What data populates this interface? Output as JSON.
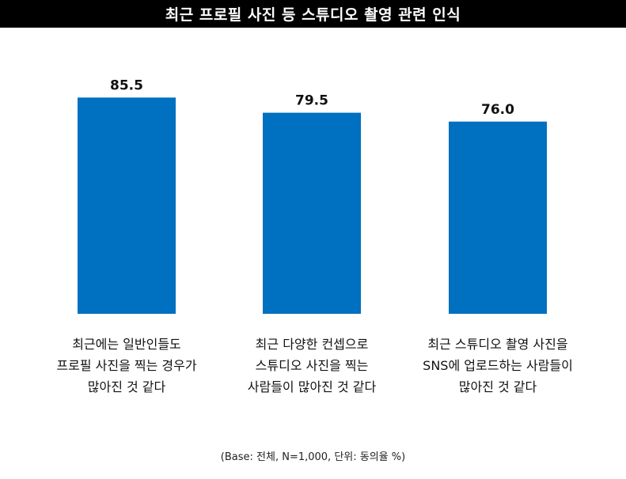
{
  "title": "최근 프로필 사진 등 스튜디오 촬영 관련 인식",
  "footnote": "(Base: 전체, N=1,000, 단위: 동의율 %)",
  "colors": {
    "bar": "#0070c0",
    "title_bg": "#000000",
    "title_text": "#ffffff"
  },
  "chart_data": {
    "type": "bar",
    "title": "최근 프로필 사진 등 스튜디오 촬영 관련 인식",
    "categories": [
      [
        "최근에는 일반인들도",
        "프로필 사진을 찍는 경우가",
        "많아진 것 같다"
      ],
      [
        "최근 다양한 컨셉으로",
        "스튜디오 사진을 찍는",
        "사람들이 많아진 것 같다"
      ],
      [
        "최근 스튜디오 촬영 사진을",
        "SNS에 업로드하는 사람들이",
        "많아진 것 같다"
      ]
    ],
    "values": [
      85.5,
      79.5,
      76.0
    ],
    "value_labels": [
      "85.5",
      "79.5",
      "76.0"
    ],
    "ylim": [
      0,
      100
    ],
    "grid": false,
    "legend": "none"
  }
}
